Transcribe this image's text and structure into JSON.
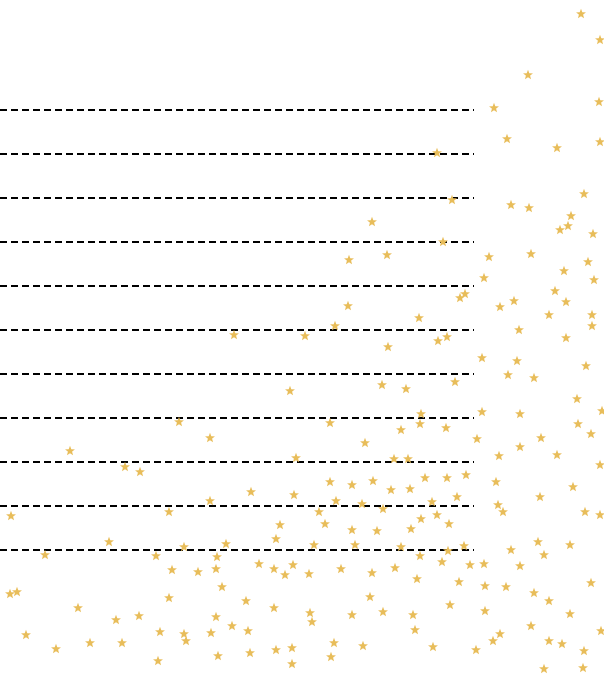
{
  "page": {
    "background": "#ffffff"
  },
  "rule_lines": {
    "count": 11,
    "color": "#000000",
    "style": "dashed"
  },
  "stars": {
    "color": "#e8bd5a",
    "icon": "star-icon"
  }
}
